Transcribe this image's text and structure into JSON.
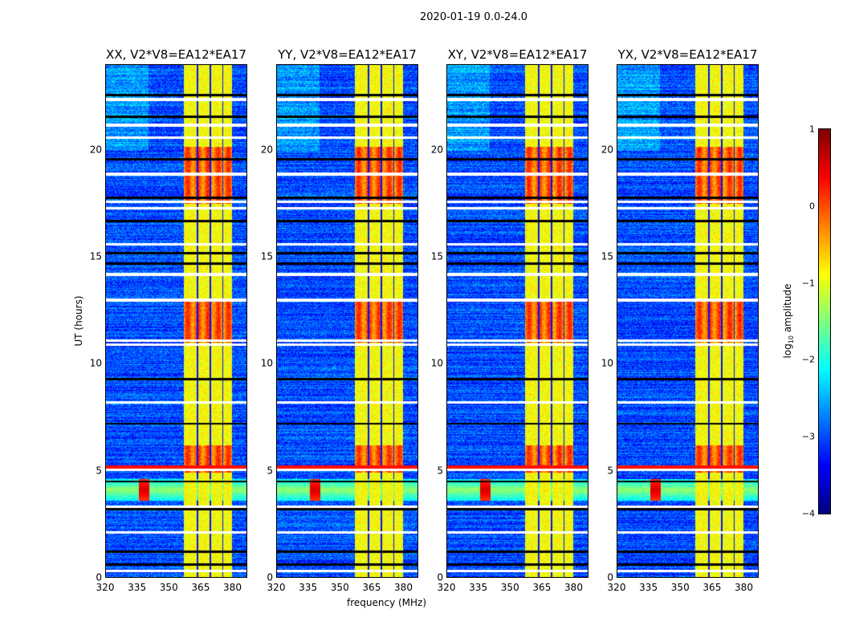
{
  "chart_data": {
    "type": "heatmap",
    "title": "2020-01-19 0.0-24.0",
    "xlabel": "frequency (MHz)",
    "ylabel": "UT (hours)",
    "xlim": [
      320,
      387
    ],
    "ylim": [
      0,
      24
    ],
    "xticks": [
      320,
      335,
      350,
      365,
      380
    ],
    "yticks": [
      0,
      5,
      10,
      15,
      20
    ],
    "panels": [
      {
        "title": "XX, V2*V8=EA12*EA17"
      },
      {
        "title": "YY, V2*V8=EA12*EA17"
      },
      {
        "title": "XY, V2*V8=EA12*EA17"
      },
      {
        "title": "YX, V2*V8=EA12*EA17"
      }
    ],
    "colorbar": {
      "label_prefix": "log",
      "label_sub": "10",
      "label_suffix": " amplitude",
      "range": [
        -4,
        1
      ],
      "ticks": [
        1,
        0,
        -1,
        -2,
        -3,
        -4
      ],
      "tick_labels": [
        "1",
        "0",
        "−1",
        "−2",
        "−3",
        "−4"
      ],
      "colormap": "jet"
    },
    "model": {
      "background_level": -3.0,
      "strong_band_mhz": [
        357,
        380
      ],
      "strong_band_level": -0.9,
      "band_gap_columns_mhz": [
        363.5,
        369.5,
        375.5
      ],
      "bright_time_ranges_h": [
        [
          17.5,
          20.2
        ],
        [
          4.9,
          6.2
        ],
        [
          11,
          13
        ]
      ],
      "rfi_time_h": [
        3.6,
        4.6
      ],
      "rfi_peak_mhz": 338,
      "flagged_white_h": [
        0.3,
        2.1,
        3.3,
        5.05,
        8.2,
        10.9,
        11.1,
        13.0,
        14.2,
        15.6,
        17.3,
        17.6,
        18.9,
        20.6,
        21.2,
        22.4
      ],
      "flagged_black_h": [
        0.6,
        1.2,
        3.2,
        4.5,
        7.2,
        9.3,
        14.7,
        15.2,
        16.7,
        17.8,
        19.6,
        21.6,
        22.6
      ]
    }
  }
}
